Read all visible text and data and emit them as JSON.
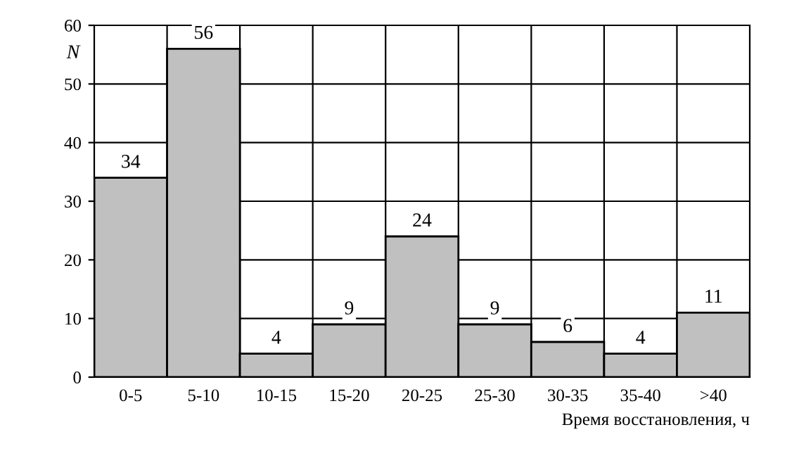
{
  "chart_data": {
    "type": "bar",
    "categories": [
      "0-5",
      "5-10",
      "10-15",
      "15-20",
      "20-25",
      "25-30",
      "30-35",
      "35-40",
      ">40"
    ],
    "values": [
      34,
      56,
      4,
      9,
      24,
      9,
      6,
      4,
      11
    ],
    "color": "#c0c0c0",
    "ylabel": "N",
    "xlabel": "Время восстановления, ч",
    "ylim": [
      0,
      60
    ],
    "yticks": [
      0,
      10,
      20,
      30,
      40,
      50,
      60
    ],
    "grid": true,
    "data_labels": true
  }
}
